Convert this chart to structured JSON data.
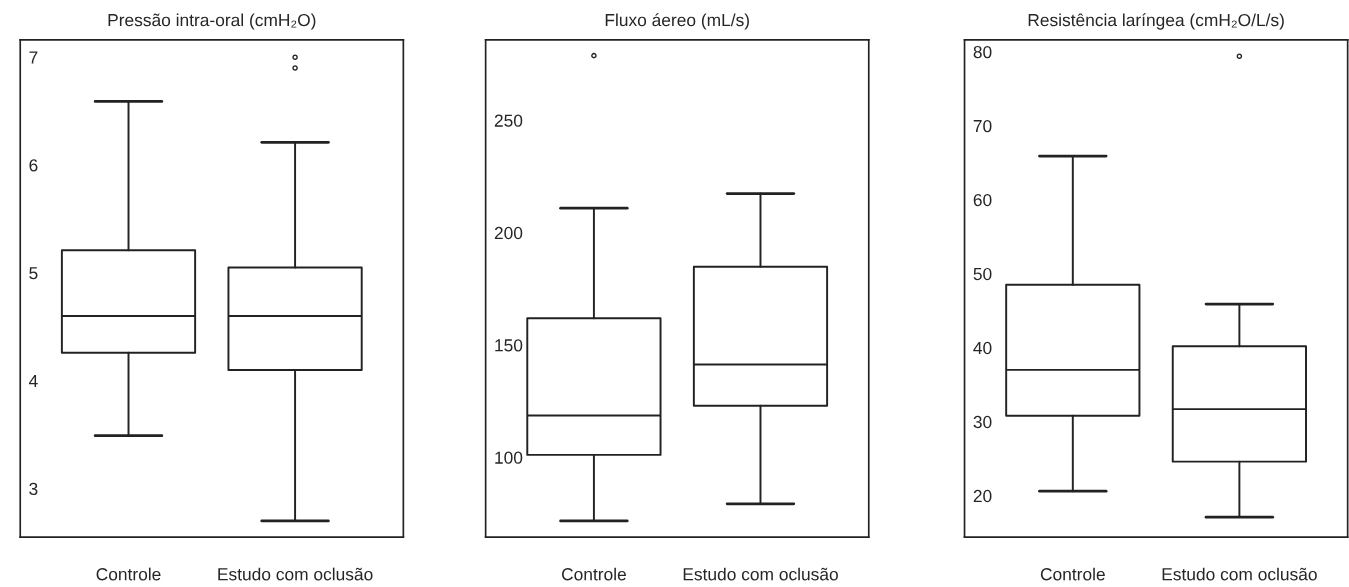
{
  "chart_data": [
    {
      "type": "box",
      "title": "Pressão intra-oral (cmH₂O)",
      "categories": [
        "Controle",
        "Estudo com oclusão"
      ],
      "ylim": [
        2.55,
        7.16
      ],
      "yticks": [
        3,
        4,
        5,
        6,
        7
      ],
      "boxes": [
        {
          "low": 3.49,
          "q1": 4.26,
          "median": 4.6,
          "q3": 5.21,
          "high": 6.59
        },
        {
          "low": 2.7,
          "q1": 4.1,
          "median": 4.6,
          "q3": 5.05,
          "high": 6.21,
          "outliers": [
            7.0,
            6.9
          ]
        }
      ]
    },
    {
      "type": "box",
      "title": "Fluxo áereo (mL/s)",
      "categories": [
        "Controle",
        "Estudo com oclusão"
      ],
      "ylim": [
        64.5,
        285.8
      ],
      "yticks": [
        100,
        150,
        200,
        250
      ],
      "boxes": [
        {
          "low": 71.7,
          "q1": 101.1,
          "median": 118.6,
          "q3": 161.9,
          "high": 210.9,
          "outliers": [
            278.8
          ]
        },
        {
          "low": 79.3,
          "q1": 123.0,
          "median": 141.3,
          "q3": 184.8,
          "high": 217.4
        }
      ]
    },
    {
      "type": "box",
      "title": "Resistência laríngea (cmH₂O/L/s)",
      "categories": [
        "Controle",
        "Estudo com oclusão"
      ],
      "ylim": [
        14.4,
        81.6
      ],
      "yticks": [
        20,
        30,
        40,
        50,
        60,
        70,
        80
      ],
      "boxes": [
        {
          "low": 20.6,
          "q1": 30.8,
          "median": 37.0,
          "q3": 48.5,
          "high": 65.9
        },
        {
          "low": 17.1,
          "q1": 24.6,
          "median": 31.7,
          "q3": 40.2,
          "high": 45.9,
          "outliers": [
            79.4
          ]
        }
      ]
    }
  ]
}
